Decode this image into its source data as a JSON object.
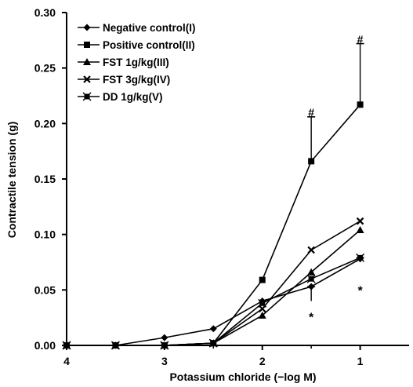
{
  "chart_data": {
    "type": "line",
    "title": "",
    "xlabel": "Potassium chloride (−log M)",
    "ylabel": "Contractile tension (g)",
    "x": [
      4,
      3.5,
      3,
      2.5,
      2,
      1.5,
      1
    ],
    "x_ticks": [
      "4",
      "3",
      "2",
      "1"
    ],
    "x_tick_values": [
      4,
      3,
      2,
      1
    ],
    "x_reversed": true,
    "xlim": [
      4,
      0.5
    ],
    "ylim": [
      0,
      0.3
    ],
    "y_ticks": [
      "0.00",
      "0.05",
      "0.10",
      "0.15",
      "0.20",
      "0.25",
      "0.30"
    ],
    "y_tick_values": [
      0,
      0.05,
      0.1,
      0.15,
      0.2,
      0.25,
      0.3
    ],
    "grid": false,
    "legend_position": "top-left",
    "series": [
      {
        "name": "Negative control(I)",
        "marker": "diamond",
        "values": [
          0,
          0,
          0.007,
          0.015,
          0.04,
          0.053,
          0.078
        ]
      },
      {
        "name": "Positive control(II)",
        "marker": "square",
        "values": [
          0,
          0,
          0,
          0.002,
          0.059,
          0.166,
          0.217
        ]
      },
      {
        "name": "FST 1g/kg(III)",
        "marker": "triangle",
        "values": [
          0,
          0,
          0,
          0.002,
          0.027,
          0.066,
          0.104
        ]
      },
      {
        "name": "FST 3g/kg(IV)",
        "marker": "x",
        "values": [
          0,
          0,
          0,
          0.002,
          0.033,
          0.086,
          0.112
        ]
      },
      {
        "name": "DD 1g/kg(V)",
        "marker": "star-square",
        "values": [
          0,
          0,
          0,
          0.002,
          0.038,
          0.06,
          0.079
        ]
      }
    ],
    "error_bars": [
      {
        "series": 1,
        "x": 1.5,
        "low": 0.166,
        "high": 0.206
      },
      {
        "series": 1,
        "x": 1,
        "low": 0.217,
        "high": 0.272
      },
      {
        "series": 0,
        "x": 1.5,
        "low": 0.04,
        "high": 0.053
      },
      {
        "series": 4,
        "x": 1,
        "low": 0.079,
        "high": 0.079
      }
    ],
    "annotations": [
      {
        "text": "#",
        "x": 1.5,
        "y": 0.21
      },
      {
        "text": "#",
        "x": 1,
        "y": 0.276
      },
      {
        "text": "*",
        "x": 1.5,
        "y": 0.028
      },
      {
        "text": "*",
        "x": 1,
        "y": 0.052
      }
    ]
  }
}
